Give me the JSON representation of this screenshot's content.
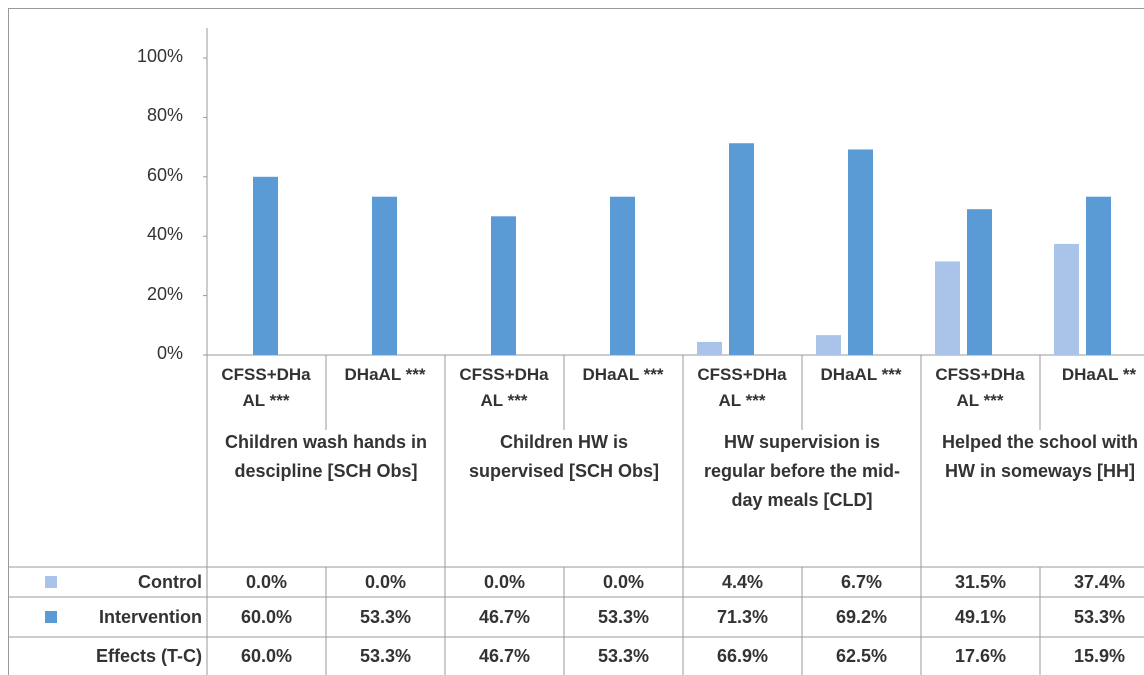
{
  "chart_data": {
    "type": "bar",
    "categories": [
      "CFSS+DHaAL ***",
      "DHaAL ***",
      "CFSS+DHaAL ***",
      "DHaAL ***",
      "CFSS+DHaAL ***",
      "DHaAL ***",
      "CFSS+DHaAL ***",
      "DHaAL **"
    ],
    "groups": [
      "Children wash hands in descipline [SCH Obs]",
      "Children HW is supervised [SCH Obs]",
      "HW supervision is regular before the mid-day meals [CLD]",
      "Helped the school with HW in someways [HH]"
    ],
    "series": [
      {
        "name": "Control",
        "color": "#a9c4e8",
        "values": [
          0.0,
          0.0,
          0.0,
          0.0,
          4.4,
          6.7,
          31.5,
          37.4
        ],
        "value_labels": [
          "0.0%",
          "0.0%",
          "0.0%",
          "0.0%",
          "4.4%",
          "6.7%",
          "31.5%",
          "37.4%"
        ]
      },
      {
        "name": "Intervention",
        "color": "#5b9bd5",
        "values": [
          60.0,
          53.3,
          46.7,
          53.3,
          71.3,
          69.2,
          49.1,
          53.3
        ],
        "value_labels": [
          "60.0%",
          "53.3%",
          "46.7%",
          "53.3%",
          "71.3%",
          "69.2%",
          "49.1%",
          "53.3%"
        ]
      },
      {
        "name": "Effects (T-C)",
        "values": [
          60.0,
          53.3,
          46.7,
          53.3,
          66.9,
          62.5,
          17.6,
          15.9
        ],
        "value_labels": [
          "60.0%",
          "53.3%",
          "46.7%",
          "53.3%",
          "66.9%",
          "62.5%",
          "17.6%",
          "15.9%"
        ]
      }
    ],
    "ylim": [
      0,
      100
    ],
    "yticks": [
      {
        "value": 0,
        "label": "0%"
      },
      {
        "value": 20,
        "label": "20%"
      },
      {
        "value": 40,
        "label": "40%"
      },
      {
        "value": 60,
        "label": "60%"
      },
      {
        "value": 80,
        "label": "80%"
      },
      {
        "value": 100,
        "label": "100%"
      }
    ]
  }
}
